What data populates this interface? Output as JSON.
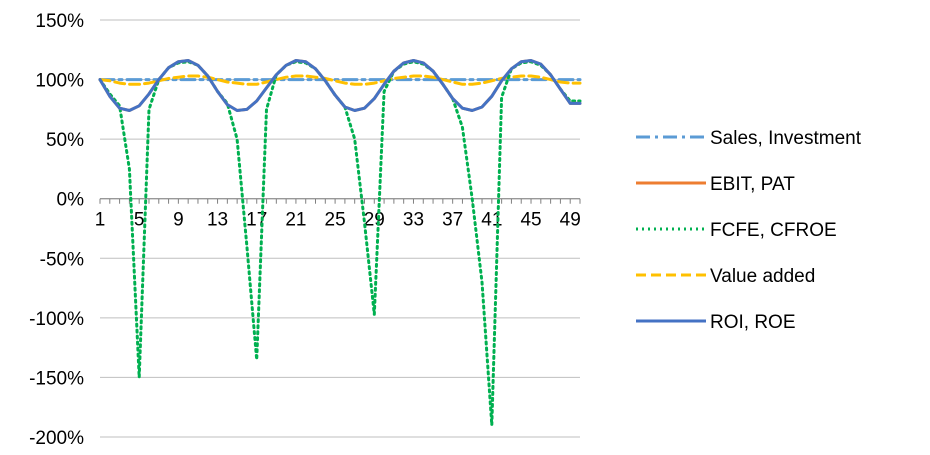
{
  "chart_data": {
    "type": "line",
    "title": "",
    "xlabel": "",
    "ylabel": "",
    "x": [
      1,
      2,
      3,
      4,
      5,
      6,
      7,
      8,
      9,
      10,
      11,
      12,
      13,
      14,
      15,
      16,
      17,
      18,
      19,
      20,
      21,
      22,
      23,
      24,
      25,
      26,
      27,
      28,
      29,
      30,
      31,
      32,
      33,
      34,
      35,
      36,
      37,
      38,
      39,
      40,
      41,
      42,
      43,
      44,
      45,
      46,
      47,
      48,
      49,
      50
    ],
    "xtick_labels": [
      "1",
      "5",
      "9",
      "13",
      "17",
      "21",
      "25",
      "29",
      "33",
      "37",
      "41",
      "45",
      "49"
    ],
    "xtick_positions": [
      1,
      5,
      9,
      13,
      17,
      21,
      25,
      29,
      33,
      37,
      41,
      45,
      49
    ],
    "ylim": [
      -200,
      150
    ],
    "yticks": [
      -200,
      -150,
      -100,
      -50,
      0,
      50,
      100,
      150
    ],
    "ytick_labels": [
      "-200%",
      "-150%",
      "-100%",
      "-50%",
      "0%",
      "50%",
      "100%",
      "150%"
    ],
    "grid": "horizontal",
    "legend_position": "right",
    "series": [
      {
        "name": "Sales, Investment",
        "color": "#5B9BD5",
        "dash": "dashdot",
        "values": [
          100,
          100,
          100,
          100,
          100,
          100,
          100,
          100,
          100,
          100,
          100,
          100,
          100,
          100,
          100,
          100,
          100,
          100,
          100,
          100,
          100,
          100,
          100,
          100,
          100,
          100,
          100,
          100,
          100,
          100,
          100,
          100,
          100,
          100,
          100,
          100,
          100,
          100,
          100,
          100,
          100,
          100,
          100,
          100,
          100,
          100,
          100,
          100,
          100,
          100
        ]
      },
      {
        "name": "EBIT, PAT",
        "color": "#ED7D31",
        "dash": "solid",
        "values": [
          100,
          86,
          76,
          74,
          78,
          88,
          100,
          110,
          115,
          116,
          112,
          103,
          90,
          79,
          74,
          75,
          82,
          93,
          104,
          112,
          116,
          115,
          109,
          99,
          87,
          77,
          74,
          76,
          84,
          96,
          107,
          114,
          116,
          114,
          107,
          96,
          84,
          76,
          74,
          77,
          86,
          99,
          109,
          115,
          116,
          113,
          104,
          92,
          80,
          80
        ]
      },
      {
        "name": "FCFE, CFROE",
        "color": "#00B050",
        "dash": "dotted",
        "values": [
          100,
          88,
          78,
          25,
          -150,
          75,
          100,
          110,
          114,
          115,
          112,
          103,
          90,
          80,
          50,
          -40,
          -135,
          75,
          104,
          112,
          115,
          114,
          109,
          99,
          87,
          77,
          50,
          -20,
          -97,
          90,
          107,
          113,
          115,
          113,
          107,
          96,
          84,
          60,
          0,
          -70,
          -190,
          85,
          109,
          114,
          115,
          112,
          104,
          92,
          82,
          82
        ]
      },
      {
        "name": "Value added",
        "color": "#FFC000",
        "dash": "dashed",
        "values": [
          100,
          99,
          97,
          96,
          96,
          97,
          99,
          101,
          102,
          103,
          103,
          102,
          100,
          98,
          97,
          96,
          96,
          98,
          100,
          102,
          103,
          103,
          102,
          101,
          99,
          97,
          96,
          96,
          97,
          99,
          101,
          102,
          103,
          103,
          102,
          100,
          98,
          96,
          96,
          97,
          99,
          101,
          102,
          103,
          103,
          102,
          100,
          98,
          97,
          97
        ]
      },
      {
        "name": "ROI, ROE",
        "color": "#4472C4",
        "dash": "solid",
        "values": [
          100,
          86,
          76,
          74,
          78,
          88,
          100,
          110,
          115,
          116,
          112,
          103,
          90,
          79,
          74,
          75,
          82,
          93,
          104,
          112,
          116,
          115,
          109,
          99,
          87,
          77,
          74,
          76,
          84,
          96,
          107,
          114,
          116,
          114,
          107,
          96,
          84,
          76,
          74,
          77,
          86,
          99,
          109,
          115,
          116,
          113,
          104,
          92,
          80,
          80
        ]
      }
    ]
  }
}
